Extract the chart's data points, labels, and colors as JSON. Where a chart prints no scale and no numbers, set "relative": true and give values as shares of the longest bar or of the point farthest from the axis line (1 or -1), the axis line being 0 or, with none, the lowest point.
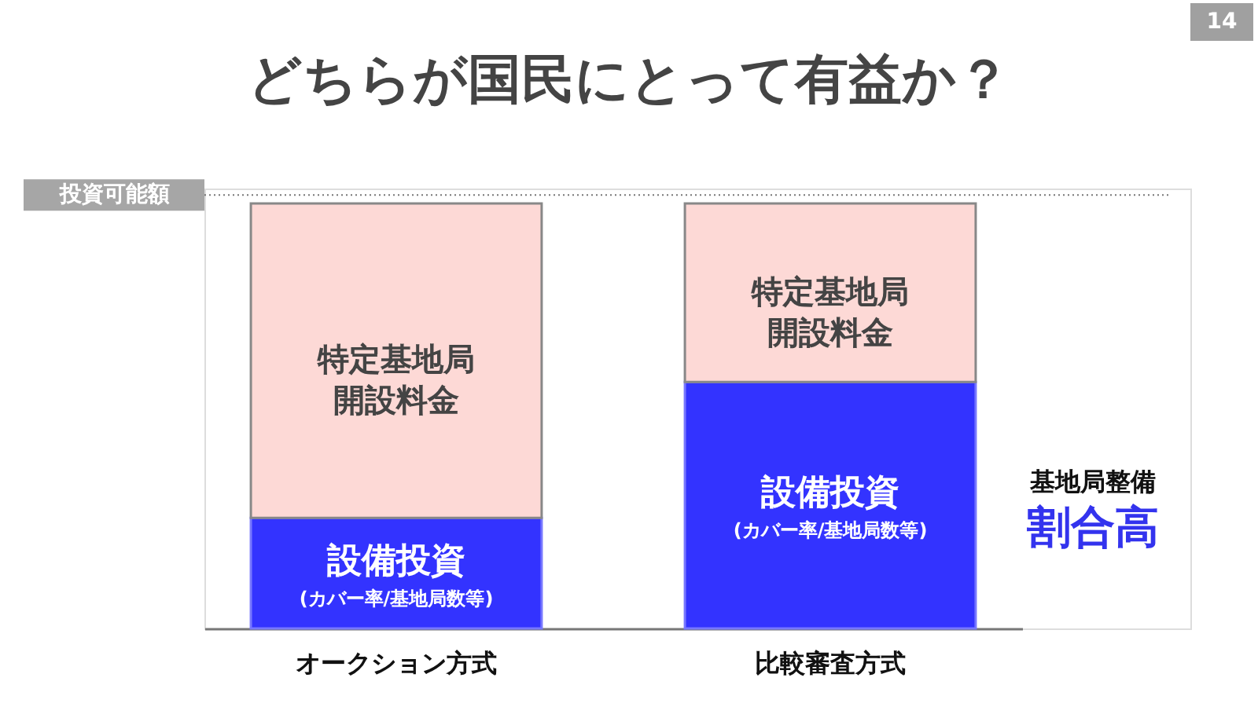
{
  "chart_data": {
    "type": "bar",
    "title": "どちらが国民にとって有益か？",
    "relative": true,
    "stacked": true,
    "legend": false,
    "grid": false,
    "tick_labels": "x",
    "categories": [
      "オークション方式",
      "比較審査方式"
    ],
    "series": [
      {
        "name": "設備投資",
        "color": "#3333ff",
        "values": [
          0.26,
          0.58
        ]
      },
      {
        "name": "特定基地局開設料金",
        "color": "#fdd9d6",
        "values": [
          0.74,
          0.42
        ]
      }
    ],
    "ref_lines": [
      {
        "axis": "y",
        "value": 1.02,
        "label": "投資可能額",
        "color": "#777777",
        "line_style": "dotted"
      }
    ],
    "annotations": [
      "14",
      "(カバー率/基地局数等)",
      "(カバー率/基地局数等)",
      "基地局整備",
      "割合高"
    ]
  }
}
